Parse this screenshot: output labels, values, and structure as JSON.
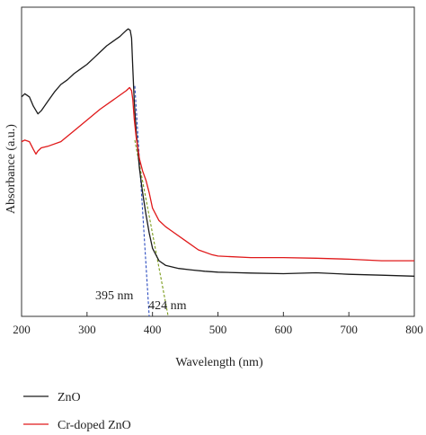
{
  "chart_data": {
    "type": "line",
    "title": "",
    "xlabel": "Wavelength (nm)",
    "ylabel": "Absorbance (a.u.)",
    "xlim": [
      200,
      800
    ],
    "ylim": [
      0,
      1
    ],
    "xticks": [
      200,
      300,
      400,
      500,
      600,
      700,
      800
    ],
    "grid": false,
    "legend_position": "bottom-left",
    "series": [
      {
        "name": "ZnO",
        "color": "#1a1a1a",
        "x": [
          200,
          205,
          212,
          218,
          225,
          230,
          240,
          250,
          260,
          270,
          280,
          290,
          300,
          310,
          320,
          330,
          340,
          350,
          355,
          360,
          363,
          366,
          368,
          370,
          372,
          375,
          378,
          380,
          385,
          390,
          395,
          400,
          410,
          420,
          440,
          460,
          480,
          500,
          550,
          600,
          650,
          700,
          750,
          800
        ],
        "y": [
          0.71,
          0.72,
          0.71,
          0.68,
          0.655,
          0.665,
          0.695,
          0.725,
          0.75,
          0.765,
          0.785,
          0.8,
          0.815,
          0.835,
          0.855,
          0.875,
          0.89,
          0.905,
          0.915,
          0.925,
          0.93,
          0.925,
          0.9,
          0.8,
          0.7,
          0.6,
          0.53,
          0.48,
          0.4,
          0.33,
          0.27,
          0.22,
          0.18,
          0.165,
          0.155,
          0.15,
          0.146,
          0.143,
          0.14,
          0.138,
          0.141,
          0.136,
          0.133,
          0.13
        ]
      },
      {
        "name": "Cr-doped ZnO",
        "color": "#e0191a",
        "x": [
          200,
          205,
          212,
          218,
          222,
          225,
          230,
          240,
          260,
          280,
          300,
          320,
          340,
          350,
          360,
          365,
          368,
          370,
          372,
          375,
          378,
          380,
          385,
          390,
          395,
          400,
          410,
          420,
          430,
          450,
          470,
          490,
          500,
          550,
          600,
          650,
          700,
          750,
          800
        ],
        "y": [
          0.565,
          0.57,
          0.565,
          0.54,
          0.525,
          0.535,
          0.545,
          0.55,
          0.565,
          0.6,
          0.635,
          0.67,
          0.7,
          0.715,
          0.73,
          0.74,
          0.73,
          0.7,
          0.64,
          0.58,
          0.54,
          0.51,
          0.47,
          0.44,
          0.4,
          0.35,
          0.31,
          0.29,
          0.275,
          0.245,
          0.215,
          0.2,
          0.195,
          0.19,
          0.19,
          0.188,
          0.185,
          0.18,
          0.18
        ]
      }
    ],
    "tangents": [
      {
        "color": "#2a4bbf",
        "x0": 373,
        "y0": 0.745,
        "x1": 395,
        "y1": 0.0
      },
      {
        "color": "#7a9a1a",
        "x0": 373,
        "y0": 0.57,
        "x1": 424,
        "y1": 0.0
      }
    ],
    "annotations": [
      {
        "text": "395 nm",
        "x": 395
      },
      {
        "text": "424 nm",
        "x": 424
      }
    ]
  }
}
